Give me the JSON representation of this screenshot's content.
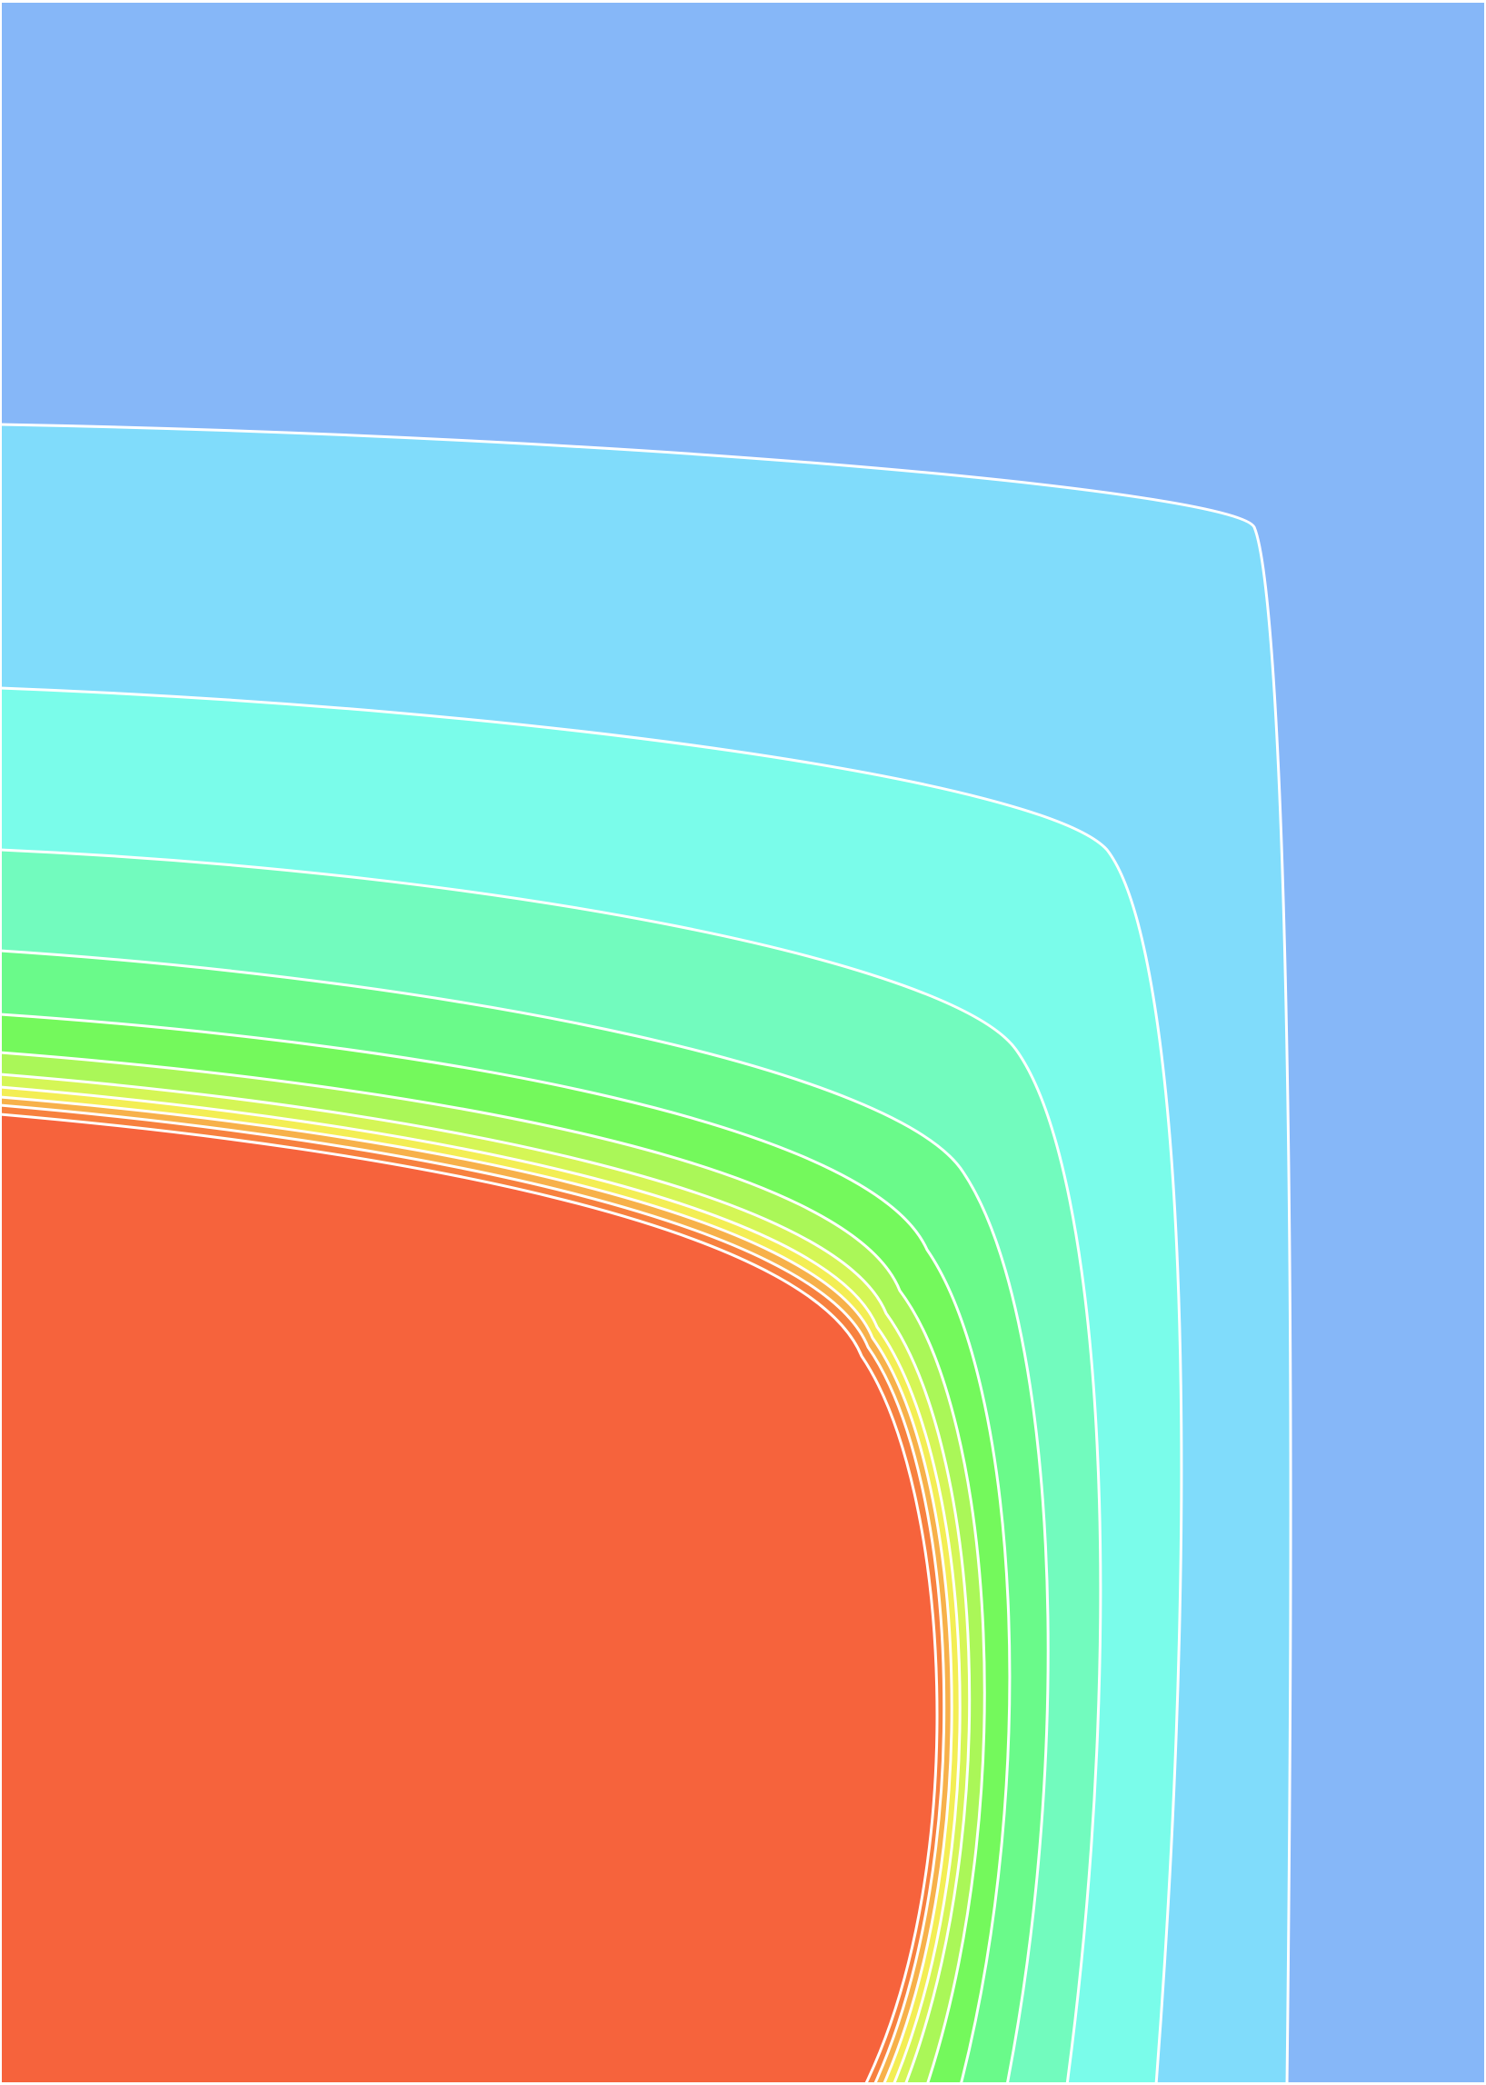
{
  "chart_data": {
    "type": "contour",
    "title": "",
    "xlabel": "",
    "ylabel": "",
    "axes_visible": false,
    "grid": false,
    "legend": "none",
    "contour_line_color": "#ffffff",
    "background_color": "#86b7f8",
    "levels": [
      {
        "index": 1,
        "fill": "#80dcfb"
      },
      {
        "index": 2,
        "fill": "#7afcea"
      },
      {
        "index": 3,
        "fill": "#72fbbe"
      },
      {
        "index": 4,
        "fill": "#6afa8a"
      },
      {
        "index": 5,
        "fill": "#74f95c"
      },
      {
        "index": 6,
        "fill": "#aaf758"
      },
      {
        "index": 7,
        "fill": "#d5f656"
      },
      {
        "index": 8,
        "fill": "#f3ee54"
      },
      {
        "index": 9,
        "fill": "#f7b14a"
      },
      {
        "index": 10,
        "fill": "#f7813f"
      },
      {
        "index": 11,
        "fill": "#f6633c"
      }
    ]
  }
}
